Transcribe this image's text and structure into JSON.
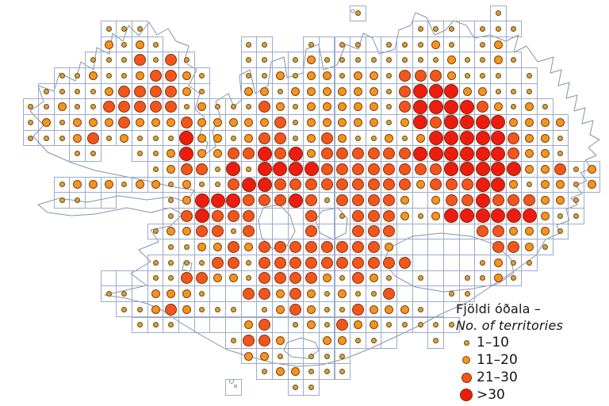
{
  "legend": {
    "title_is": "Fjöldi óðala –",
    "title_en": "No. of territories",
    "items": [
      {
        "label": "1–10",
        "size_class": "s1",
        "color": "#D2A43C"
      },
      {
        "label": "11–20",
        "size_class": "s2",
        "color": "#F7941E"
      },
      {
        "label": "21–30",
        "size_class": "s3",
        "color": "#F2561D"
      },
      {
        "label": ">30",
        "size_class": "s4",
        "color": "#ED1C0F"
      }
    ]
  },
  "colors": {
    "dot_1": "#D2A43C",
    "dot_2": "#F7941E",
    "dot_3": "#F2561D",
    "dot_4": "#ED1C0F",
    "grid_line": "#9AACCC",
    "coastline": "#8893A3",
    "background": "#FFFFFF",
    "text": "#151515"
  },
  "chart_data": {
    "type": "heatmap",
    "subtype": "gridded-proportional-dot-map",
    "region_depicted": "Iceland",
    "title": "Fjöldi óðala – No. of territories",
    "legend_position": "bottom-right",
    "categories": [
      "1–10",
      "11–20",
      "21–30",
      ">30"
    ],
    "grid_encoding": {
      ".": "no surveyed cell (sea)",
      "0": "surveyed grid cell, no dot",
      "1": "1–10 territories",
      "2": "11–20 territories",
      "3": "21–30 territories",
      "4": ">30 territories"
    },
    "dot_sizes_px": {
      "1": 5,
      "2": 9,
      "3": 13,
      "4": 16
    },
    "grid_cols": 37,
    "grid_rows": 25,
    "grid": [
      ".....................1........1......",
      ".....111.................1110111.....",
      ".....2121.....11..1011011121012......",
      "....1113131...110121111111121121.....",
      "..1121123321..11212212213332111.1....",
      ".11112333321..2212222221344422111....",
      "1121133333121113212222213444432121...",
      "12122232223222223122222124344442222..",
      "11123121114221233123211212444443221..",
      "...11..1124223343423333334444443221..",
      "........12331414444333333334444422312",
      "..12221221211344333333333233344212212",
      "..1100...124443334313333202334333221.",
      ".........134333000301333212444444211.",
      "........122331300030033300000332221..",
      ".........1122323333333320000003321...",
      "........1111331333333333300001211....",
      ".....000113322133332132101001121.....",
      ".....110222100332321211300011........",
      "......112321110123211322210..........",
      ".......111000023012132211111.........",
      ".............13320022110..1..........",
      "..............2210111................",
      "...............122111................",
      ".............0...11.................."
    ]
  }
}
